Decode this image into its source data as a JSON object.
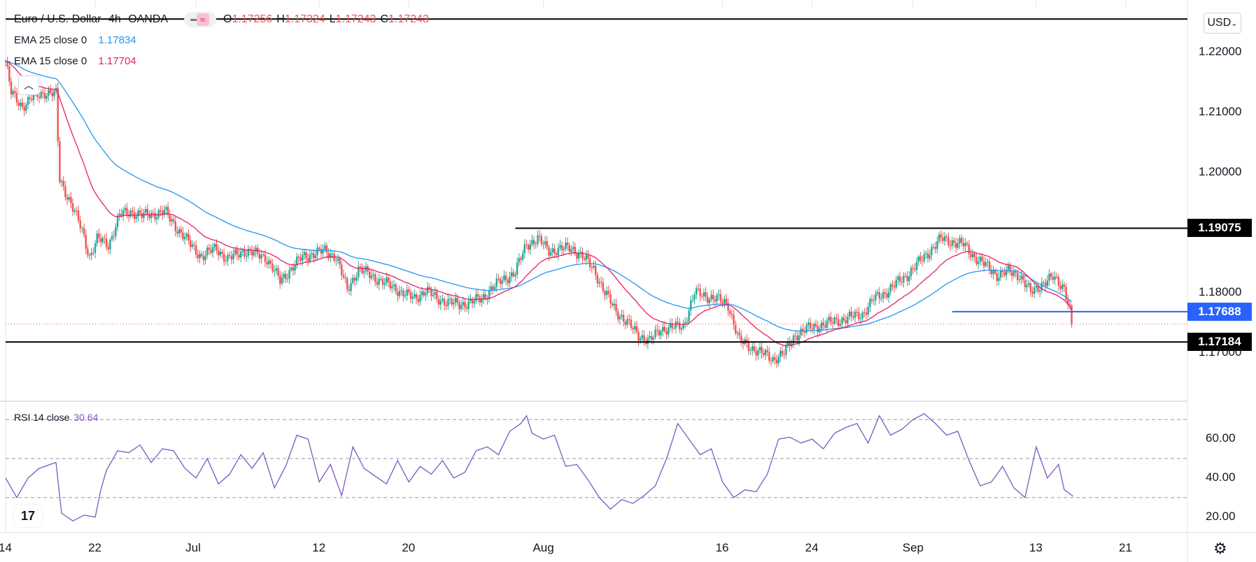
{
  "header": {
    "symbol": "Euro / U.S. Dollar",
    "interval": "4h",
    "source": "OANDA",
    "ohlc": [
      {
        "k": "O",
        "v": "1.17256"
      },
      {
        "k": "H",
        "v": "1.17324"
      },
      {
        "k": "L",
        "v": "1.17243"
      },
      {
        "k": "C",
        "v": "1.17243"
      }
    ],
    "toggle_icon": "wave-icon"
  },
  "indicators": {
    "ema25": {
      "label": "EMA 25 close 0",
      "value": "1.17834",
      "color": "#2196f3"
    },
    "ema15": {
      "label": "EMA 15 close 0",
      "value": "1.17704",
      "color": "#e91e63"
    },
    "rsi": {
      "label": "RSI 14 close",
      "value": "30.64",
      "color": "#7e57c2"
    }
  },
  "currency": "USD",
  "price_tags": [
    {
      "label": "1.19075",
      "price": 1.19075,
      "color": "#000000"
    },
    {
      "label": "1.17688",
      "price": 1.17688,
      "color": "#2962ff"
    },
    {
      "label": "1.17184",
      "price": 1.17184,
      "color": "#000000"
    }
  ],
  "chart_data": {
    "type": "candlestick",
    "title": "Euro / U.S. Dollar, 4h, OANDA",
    "price_axis": {
      "ticks": [
        "1.22000",
        "1.21000",
        "1.20000",
        "1.18000",
        "1.17000"
      ],
      "ylim": [
        1.162,
        1.2275
      ]
    },
    "x_ticks": [
      "14",
      "22",
      "Jul",
      "12",
      "20",
      "Aug",
      "16",
      "24",
      "Sep",
      "13",
      "21"
    ],
    "x_tick_positions_days": [
      0,
      8,
      17,
      28,
      36,
      48,
      64,
      72,
      81,
      92,
      100
    ],
    "xlim_days": [
      0,
      105.5
    ],
    "last_bar_day": 95.3,
    "price_path": [
      [
        0,
        1.2185
      ],
      [
        0.5,
        1.2132
      ],
      [
        1.5,
        1.211
      ],
      [
        2.5,
        1.2126
      ],
      [
        3.5,
        1.2133
      ],
      [
        4.5,
        1.213
      ],
      [
        4.8,
        1.199
      ],
      [
        5.8,
        1.195
      ],
      [
        6.8,
        1.1905
      ],
      [
        7.5,
        1.186
      ],
      [
        8.2,
        1.189
      ],
      [
        9.2,
        1.188
      ],
      [
        10.2,
        1.193
      ],
      [
        11.2,
        1.1935
      ],
      [
        12.2,
        1.1928
      ],
      [
        14.2,
        1.1935
      ],
      [
        15.2,
        1.191
      ],
      [
        16.5,
        1.188
      ],
      [
        17.5,
        1.186
      ],
      [
        18.8,
        1.1875
      ],
      [
        19.8,
        1.1855
      ],
      [
        21.2,
        1.187
      ],
      [
        23.2,
        1.186
      ],
      [
        24.5,
        1.182
      ],
      [
        25.5,
        1.184
      ],
      [
        26.5,
        1.186
      ],
      [
        28.5,
        1.187
      ],
      [
        29.5,
        1.186
      ],
      [
        30.5,
        1.1805
      ],
      [
        31.5,
        1.184
      ],
      [
        32.5,
        1.183
      ],
      [
        34.5,
        1.181
      ],
      [
        36.5,
        1.179
      ],
      [
        37.5,
        1.1805
      ],
      [
        38.5,
        1.179
      ],
      [
        40.5,
        1.178
      ],
      [
        42.5,
        1.179
      ],
      [
        43.5,
        1.181
      ],
      [
        45.5,
        1.1835
      ],
      [
        46.5,
        1.188
      ],
      [
        47.5,
        1.189
      ],
      [
        48.5,
        1.187
      ],
      [
        50.5,
        1.1875
      ],
      [
        51.5,
        1.186
      ],
      [
        52.5,
        1.184
      ],
      [
        53.5,
        1.18
      ],
      [
        54.5,
        1.177
      ],
      [
        55.5,
        1.175
      ],
      [
        56.5,
        1.173
      ],
      [
        57.5,
        1.172
      ],
      [
        58.5,
        1.174
      ],
      [
        60.5,
        1.1745
      ],
      [
        61.5,
        1.18
      ],
      [
        63.5,
        1.179
      ],
      [
        64.5,
        1.178
      ],
      [
        65.5,
        1.172
      ],
      [
        66.5,
        1.171
      ],
      [
        67.5,
        1.17
      ],
      [
        68.5,
        1.169
      ],
      [
        69.5,
        1.17
      ],
      [
        70.5,
        1.173
      ],
      [
        71.5,
        1.174
      ],
      [
        73.5,
        1.175
      ],
      [
        75.5,
        1.176
      ],
      [
        76.5,
        1.1765
      ],
      [
        77.5,
        1.179
      ],
      [
        78.5,
        1.18
      ],
      [
        79.5,
        1.1815
      ],
      [
        80.5,
        1.183
      ],
      [
        81.5,
        1.185
      ],
      [
        82.5,
        1.187
      ],
      [
        83.5,
        1.189
      ],
      [
        84.5,
        1.1885
      ],
      [
        85.5,
        1.188
      ],
      [
        86.5,
        1.186
      ],
      [
        87.5,
        1.1845
      ],
      [
        88.5,
        1.183
      ],
      [
        89.5,
        1.1835
      ],
      [
        90.5,
        1.183
      ],
      [
        91.5,
        1.18
      ],
      [
        92.5,
        1.1815
      ],
      [
        93.5,
        1.1825
      ],
      [
        94.5,
        1.181
      ],
      [
        95.0,
        1.177
      ],
      [
        95.3,
        1.1724
      ]
    ],
    "ema25_end": 1.17834,
    "ema15_end": 1.17704,
    "horizontal_lines": [
      {
        "price": 1.19075,
        "from_day": 45.5,
        "to_day": 105.5,
        "color": "#000000"
      },
      {
        "price": 1.17688,
        "from_day": 84.5,
        "to_day": 105.5,
        "color": "#2962ff"
      },
      {
        "price": 1.17184,
        "from_day": 0,
        "to_day": 105.5,
        "color": "#000000"
      },
      {
        "price": 1.2255,
        "from_day": 0,
        "to_day": 105.5,
        "color": "#000000"
      }
    ],
    "rsi": {
      "label": "RSI 14 close",
      "value": 30.64,
      "levels": [
        70,
        50,
        30
      ],
      "ticks": [
        "60.00",
        "40.00",
        "20.00"
      ],
      "ylim": [
        12,
        78
      ],
      "path": [
        [
          0,
          40
        ],
        [
          1,
          30
        ],
        [
          2,
          40
        ],
        [
          3,
          45
        ],
        [
          4,
          47
        ],
        [
          4.5,
          48
        ],
        [
          5,
          22
        ],
        [
          6,
          18
        ],
        [
          7,
          21
        ],
        [
          8,
          20
        ],
        [
          8.5,
          34
        ],
        [
          9,
          44
        ],
        [
          10,
          54
        ],
        [
          11,
          53
        ],
        [
          12,
          57
        ],
        [
          13,
          48
        ],
        [
          14,
          55
        ],
        [
          15,
          54
        ],
        [
          16,
          45
        ],
        [
          17,
          40
        ],
        [
          18,
          50
        ],
        [
          19,
          37
        ],
        [
          20,
          42
        ],
        [
          21,
          52
        ],
        [
          22,
          45
        ],
        [
          23,
          53
        ],
        [
          24,
          35
        ],
        [
          25,
          46
        ],
        [
          26,
          62
        ],
        [
          27,
          60
        ],
        [
          28,
          38
        ],
        [
          29,
          47
        ],
        [
          30,
          31
        ],
        [
          31,
          56
        ],
        [
          32,
          45
        ],
        [
          33,
          41
        ],
        [
          34,
          37
        ],
        [
          35,
          49
        ],
        [
          36,
          38
        ],
        [
          37,
          46
        ],
        [
          38,
          42
        ],
        [
          39,
          49
        ],
        [
          40,
          40
        ],
        [
          41,
          43
        ],
        [
          42,
          54
        ],
        [
          43,
          56
        ],
        [
          44,
          52
        ],
        [
          45,
          64
        ],
        [
          46,
          68
        ],
        [
          46.5,
          72
        ],
        [
          47,
          63
        ],
        [
          48,
          60
        ],
        [
          49,
          62
        ],
        [
          50,
          46
        ],
        [
          51,
          47
        ],
        [
          52,
          39
        ],
        [
          53,
          30
        ],
        [
          54,
          24
        ],
        [
          55,
          29
        ],
        [
          56,
          27
        ],
        [
          57,
          31
        ],
        [
          58,
          36
        ],
        [
          59,
          50
        ],
        [
          60,
          68
        ],
        [
          61,
          60
        ],
        [
          62,
          52
        ],
        [
          63,
          55
        ],
        [
          64,
          38
        ],
        [
          65,
          30
        ],
        [
          66,
          34
        ],
        [
          67,
          33
        ],
        [
          68,
          42
        ],
        [
          69,
          60
        ],
        [
          70,
          61
        ],
        [
          71,
          58
        ],
        [
          72,
          60
        ],
        [
          73,
          55
        ],
        [
          74,
          63
        ],
        [
          75,
          66
        ],
        [
          76,
          68
        ],
        [
          77,
          58
        ],
        [
          78,
          72
        ],
        [
          79,
          62
        ],
        [
          80,
          65
        ],
        [
          81,
          70
        ],
        [
          82,
          73
        ],
        [
          83,
          68
        ],
        [
          84,
          62
        ],
        [
          85,
          64
        ],
        [
          86,
          49
        ],
        [
          87,
          36
        ],
        [
          88,
          38
        ],
        [
          89,
          46
        ],
        [
          90,
          35
        ],
        [
          91,
          30
        ],
        [
          92,
          56
        ],
        [
          93,
          40
        ],
        [
          94,
          47
        ],
        [
          94.5,
          34
        ],
        [
          95.3,
          30.64
        ]
      ]
    }
  }
}
